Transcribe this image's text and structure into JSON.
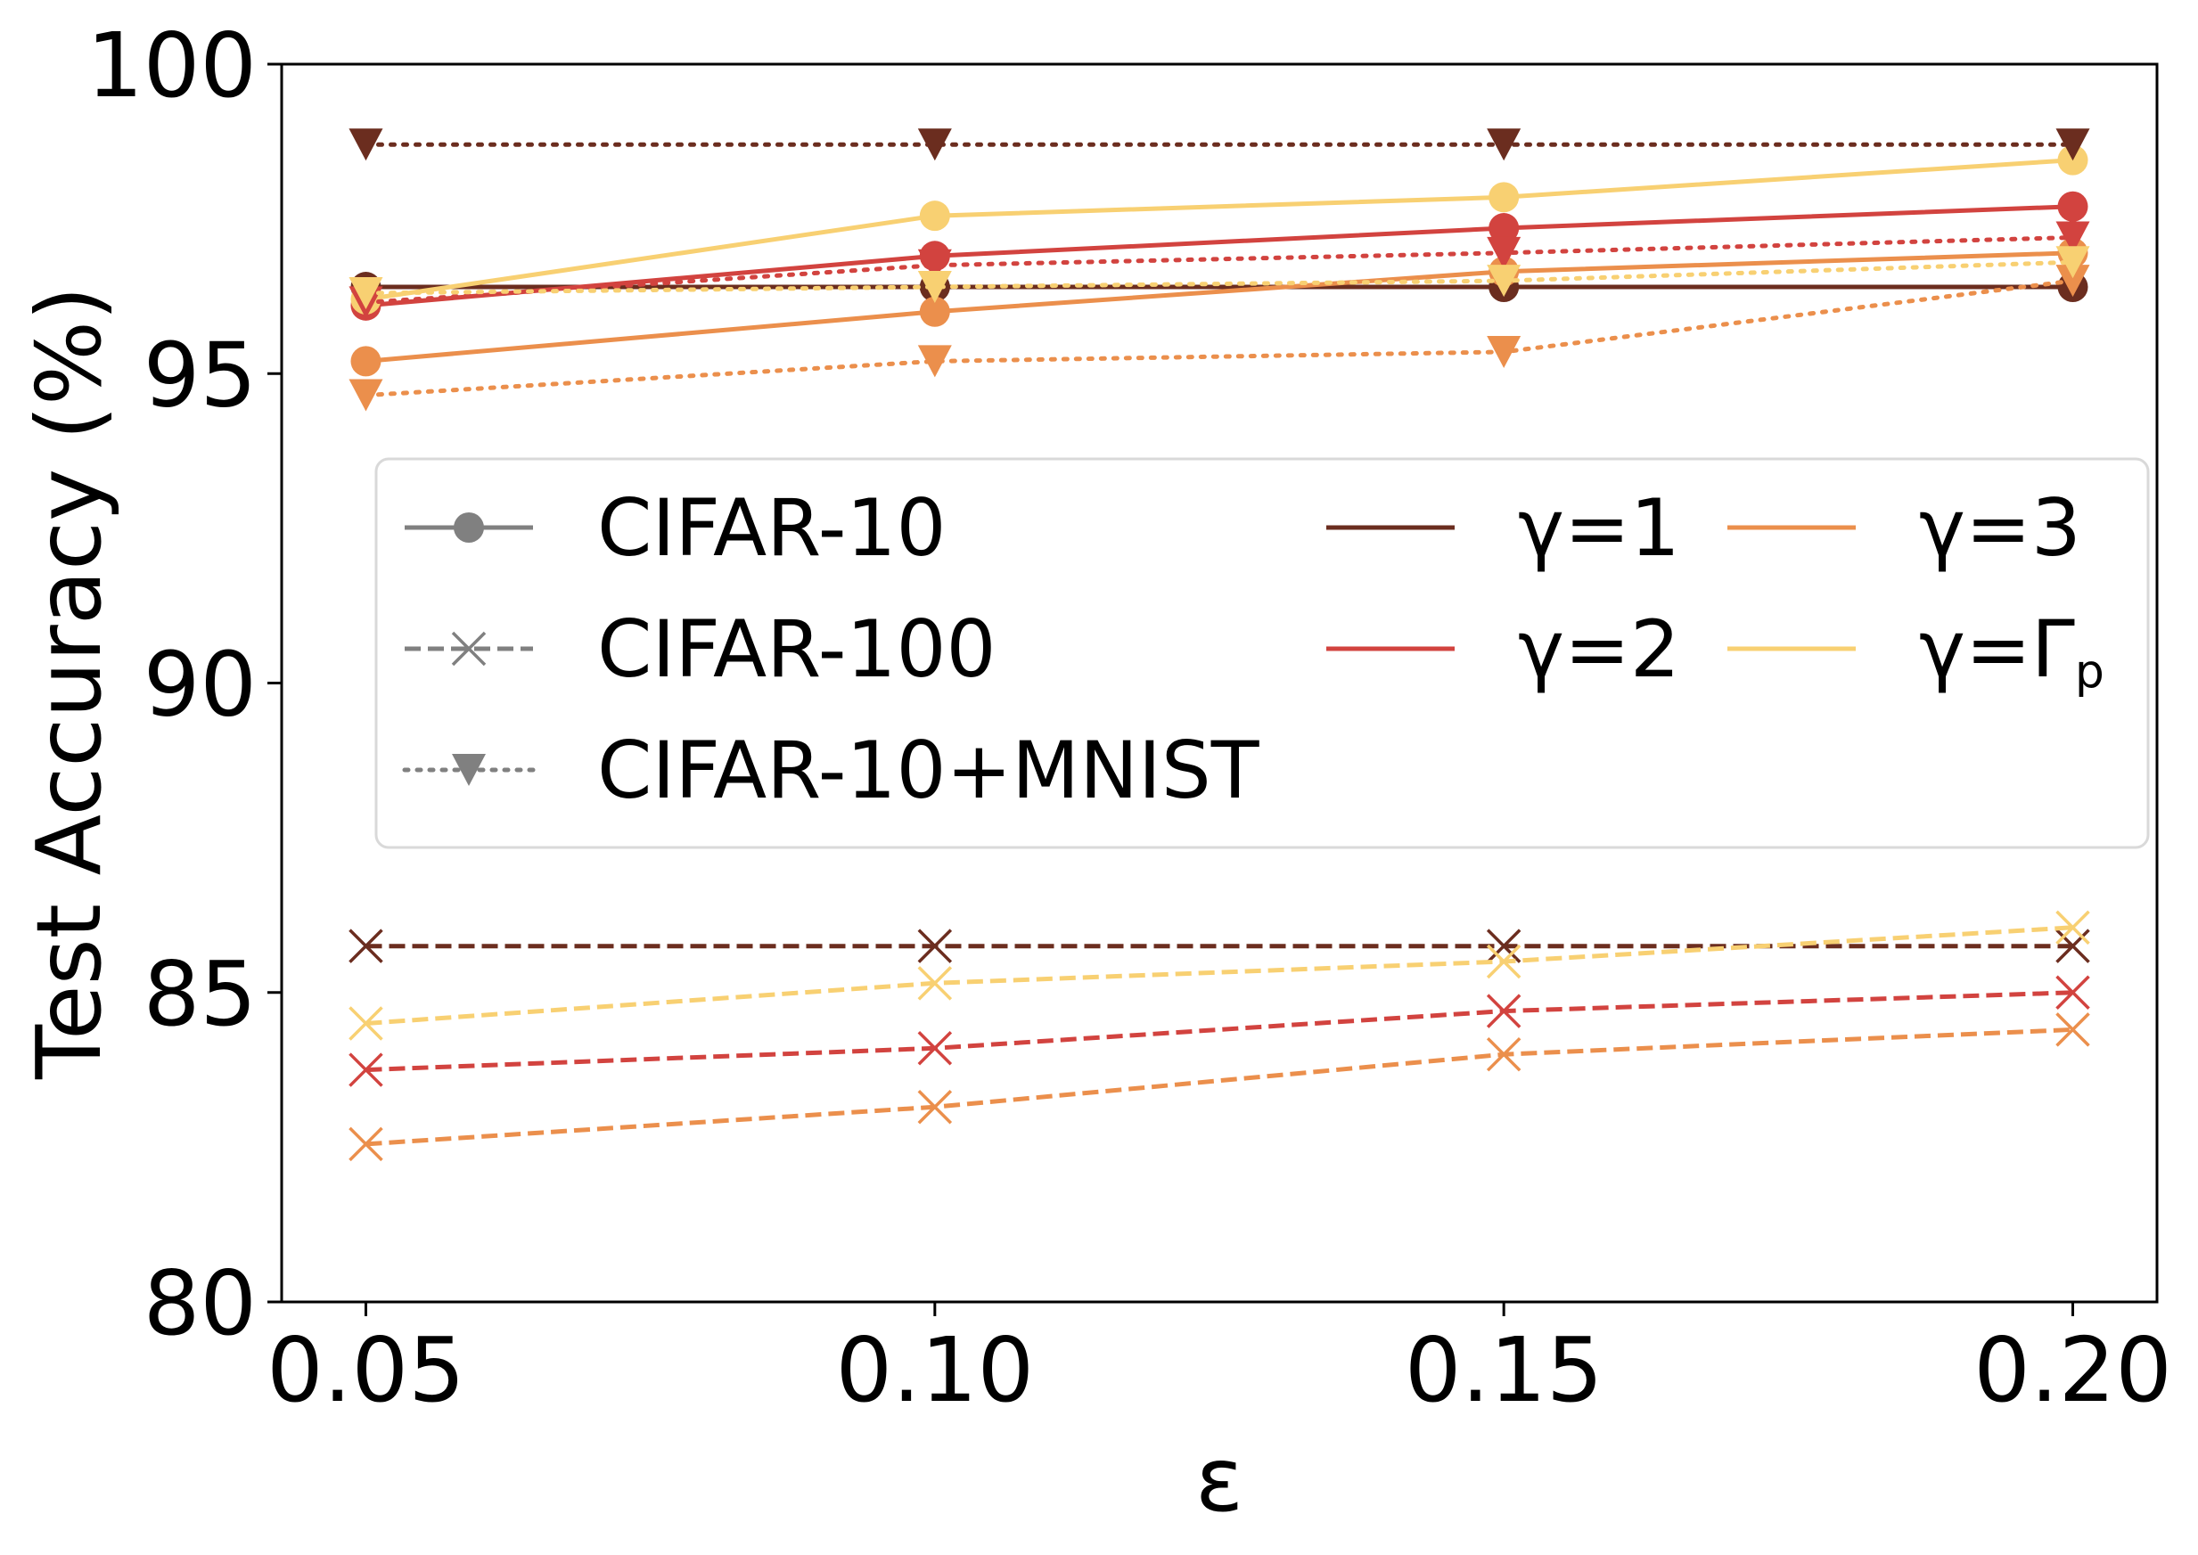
{
  "chart_data": {
    "type": "line",
    "xlabel": "ε",
    "ylabel": "Test Accuracy (%)",
    "x": [
      0.05,
      0.1,
      0.15,
      0.2
    ],
    "x_tick_labels": [
      "0.05",
      "0.10",
      "0.15",
      "0.20"
    ],
    "xlim": [
      0.0426,
      0.2074
    ],
    "ylim": [
      80,
      100
    ],
    "y_ticks": [
      80,
      85,
      90,
      95,
      100
    ],
    "y_tick_labels": [
      "80",
      "85",
      "90",
      "95",
      "100"
    ],
    "grid": false,
    "legend_datasets": [
      {
        "label": "CIFAR-10",
        "marker": "circle",
        "linestyle": "solid"
      },
      {
        "label": "CIFAR-100",
        "marker": "x",
        "linestyle": "dashed"
      },
      {
        "label": "CIFAR-10+MNIST",
        "marker": "triangle-down",
        "linestyle": "dotted"
      }
    ],
    "legend_gammas": [
      {
        "label": "γ=1",
        "color": "#6b2d1f"
      },
      {
        "label": "γ=2",
        "color": "#d2433f"
      },
      {
        "label": "γ=3",
        "color": "#eb8f4c"
      },
      {
        "label": "γ=Γ",
        "sub": "p",
        "color": "#f8d072"
      }
    ],
    "legend_placement": "center",
    "series": [
      {
        "name": "CIFAR-10 γ=1",
        "dataset": "CIFAR-10",
        "gamma": "γ=1",
        "color": "#6b2d1f",
        "values": [
          96.4,
          96.4,
          96.4,
          96.4
        ]
      },
      {
        "name": "CIFAR-10 γ=2",
        "dataset": "CIFAR-10",
        "gamma": "γ=2",
        "color": "#d2433f",
        "values": [
          96.1,
          96.9,
          97.35,
          97.7
        ]
      },
      {
        "name": "CIFAR-10 γ=3",
        "dataset": "CIFAR-10",
        "gamma": "γ=3",
        "color": "#eb8f4c",
        "values": [
          95.2,
          96.0,
          96.65,
          96.95
        ]
      },
      {
        "name": "CIFAR-10 γ=Γp",
        "dataset": "CIFAR-10",
        "gamma": "γ=Γp",
        "color": "#f8d072",
        "values": [
          96.2,
          97.55,
          97.85,
          98.45
        ]
      },
      {
        "name": "CIFAR-100 γ=1",
        "dataset": "CIFAR-100",
        "gamma": "γ=1",
        "color": "#6b2d1f",
        "values": [
          85.75,
          85.75,
          85.75,
          85.75
        ]
      },
      {
        "name": "CIFAR-100 γ=2",
        "dataset": "CIFAR-100",
        "gamma": "γ=2",
        "color": "#d2433f",
        "values": [
          83.75,
          84.1,
          84.7,
          85.0
        ]
      },
      {
        "name": "CIFAR-100 γ=3",
        "dataset": "CIFAR-100",
        "gamma": "γ=3",
        "color": "#eb8f4c",
        "values": [
          82.55,
          83.15,
          84.0,
          84.4
        ]
      },
      {
        "name": "CIFAR-100 γ=Γp",
        "dataset": "CIFAR-100",
        "gamma": "γ=Γp",
        "color": "#f8d072",
        "values": [
          84.5,
          85.15,
          85.5,
          86.05
        ]
      },
      {
        "name": "CIFAR-10+MNIST γ=1",
        "dataset": "CIFAR-10+MNIST",
        "gamma": "γ=1",
        "color": "#6b2d1f",
        "values": [
          98.7,
          98.7,
          98.7,
          98.7
        ]
      },
      {
        "name": "CIFAR-10+MNIST γ=2",
        "dataset": "CIFAR-10+MNIST",
        "gamma": "γ=2",
        "color": "#d2433f",
        "values": [
          96.15,
          96.75,
          96.95,
          97.2
        ]
      },
      {
        "name": "CIFAR-10+MNIST γ=3",
        "dataset": "CIFAR-10+MNIST",
        "gamma": "γ=3",
        "color": "#eb8f4c",
        "values": [
          94.65,
          95.2,
          95.35,
          96.5
        ]
      },
      {
        "name": "CIFAR-10+MNIST γ=Γp",
        "dataset": "CIFAR-10+MNIST",
        "gamma": "γ=Γp",
        "color": "#f8d072",
        "values": [
          96.3,
          96.4,
          96.5,
          96.8
        ]
      }
    ]
  }
}
